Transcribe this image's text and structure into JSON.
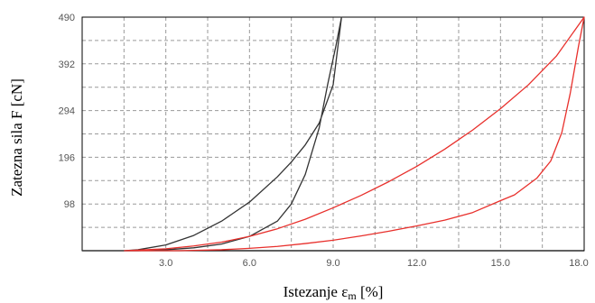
{
  "chart_data": {
    "type": "line",
    "xlabel": "Istezanje ε",
    "xlabel_subscript": "m",
    "xlabel_unit": " [%]",
    "ylabel": "Zatezna sila  F [cN]",
    "xlim": [
      0,
      18
    ],
    "ylim": [
      0,
      490
    ],
    "xticks": [
      3,
      6,
      9,
      12,
      15,
      18
    ],
    "xtick_labels": [
      "3.0",
      "6.0",
      "9.0",
      "12.0",
      "15.0",
      "18.0"
    ],
    "yticks": [
      98,
      196,
      294,
      392,
      490
    ],
    "ytick_labels": [
      "98",
      "196",
      "294",
      "392",
      "490"
    ],
    "x_grid_lines": [
      1.5,
      3,
      4.5,
      6,
      7.5,
      9,
      10.5,
      12,
      13.5,
      15,
      16.5
    ],
    "y_grid_lines": [
      49,
      98,
      147,
      196,
      245,
      294,
      343,
      392,
      441
    ],
    "grid": true,
    "series": [
      {
        "color": "#333333",
        "points": [
          [
            0,
            0
          ],
          [
            1.5,
            0
          ],
          [
            2,
            2
          ],
          [
            3,
            12
          ],
          [
            4,
            32
          ],
          [
            5,
            62
          ],
          [
            6,
            102
          ],
          [
            7,
            155
          ],
          [
            7.5,
            186
          ],
          [
            8,
            222
          ],
          [
            8.5,
            268
          ],
          [
            9,
            348
          ],
          [
            9.3,
            490
          ],
          [
            9.1,
            430
          ],
          [
            8.8,
            348
          ],
          [
            8.5,
            258
          ],
          [
            8,
            160
          ],
          [
            7.5,
            98
          ],
          [
            7,
            62
          ],
          [
            6,
            30
          ],
          [
            5,
            14
          ],
          [
            4,
            6
          ],
          [
            3,
            2
          ],
          [
            2,
            0
          ],
          [
            1.5,
            0
          ]
        ]
      },
      {
        "color": "#e8302c",
        "points": [
          [
            1.5,
            0
          ],
          [
            3,
            4
          ],
          [
            4,
            10
          ],
          [
            5,
            18
          ],
          [
            6,
            30
          ],
          [
            7,
            46
          ],
          [
            8,
            66
          ],
          [
            9,
            90
          ],
          [
            10,
            116
          ],
          [
            11,
            145
          ],
          [
            12,
            177
          ],
          [
            13,
            213
          ],
          [
            14,
            253
          ],
          [
            15,
            298
          ],
          [
            16,
            348
          ],
          [
            17,
            408
          ],
          [
            18,
            490
          ],
          [
            17.8,
            430
          ],
          [
            17.5,
            330
          ],
          [
            17.2,
            248
          ],
          [
            16.8,
            188
          ],
          [
            16.3,
            152
          ],
          [
            15.5,
            117
          ],
          [
            15,
            105
          ],
          [
            14,
            80
          ],
          [
            13,
            64
          ],
          [
            12,
            52
          ],
          [
            11,
            41
          ],
          [
            10,
            31
          ],
          [
            9,
            22
          ],
          [
            8,
            15
          ],
          [
            7,
            9
          ],
          [
            6,
            5
          ],
          [
            5,
            2
          ],
          [
            3.5,
            0
          ],
          [
            1.5,
            0
          ]
        ]
      }
    ]
  }
}
